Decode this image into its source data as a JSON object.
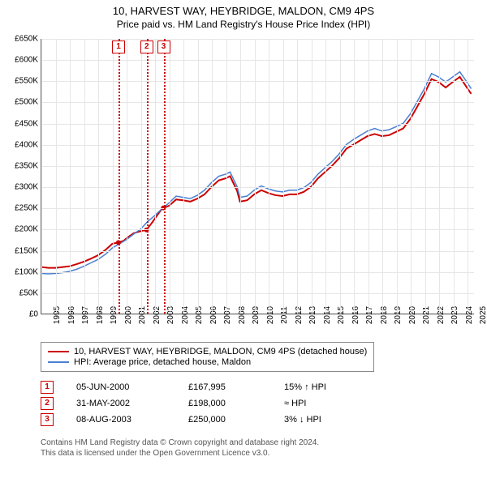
{
  "title_line1": "10, HARVEST WAY, HEYBRIDGE, MALDON, CM9 4PS",
  "title_line2": "Price paid vs. HM Land Registry's House Price Index (HPI)",
  "chart": {
    "type": "line",
    "background_color": "#ffffff",
    "grid_color": "#e6e6e6",
    "axis_color": "#666666",
    "x_min": 1995,
    "x_max": 2025.5,
    "y_min": 0,
    "y_max": 650000,
    "y_step": 50000,
    "y_prefix": "£",
    "y_suffix": "K",
    "x_ticks": [
      1995,
      1996,
      1997,
      1998,
      1999,
      2000,
      2001,
      2002,
      2003,
      2004,
      2005,
      2006,
      2007,
      2008,
      2009,
      2010,
      2011,
      2012,
      2013,
      2014,
      2015,
      2016,
      2017,
      2018,
      2019,
      2020,
      2021,
      2022,
      2023,
      2024,
      2025
    ],
    "series": [
      {
        "name": "10, HARVEST WAY, HEYBRIDGE, MALDON, CM9 4PS (detached house)",
        "color": "#cc0000",
        "width": 2,
        "points": [
          [
            1995,
            110000
          ],
          [
            1995.5,
            108000
          ],
          [
            1996,
            108000
          ],
          [
            1996.5,
            110000
          ],
          [
            1997,
            112000
          ],
          [
            1997.5,
            117000
          ],
          [
            1998,
            123000
          ],
          [
            1998.5,
            130000
          ],
          [
            1999,
            138000
          ],
          [
            1999.5,
            150000
          ],
          [
            2000,
            165000
          ],
          [
            2000.4,
            168000
          ],
          [
            2000.8,
            172000
          ],
          [
            2001,
            178000
          ],
          [
            2001.5,
            190000
          ],
          [
            2002,
            195000
          ],
          [
            2002.4,
            198000
          ],
          [
            2002.8,
            215000
          ],
          [
            2003,
            225000
          ],
          [
            2003.5,
            248000
          ],
          [
            2003.6,
            250000
          ],
          [
            2004,
            255000
          ],
          [
            2004.5,
            270000
          ],
          [
            2005,
            268000
          ],
          [
            2005.5,
            265000
          ],
          [
            2006,
            272000
          ],
          [
            2006.5,
            282000
          ],
          [
            2007,
            300000
          ],
          [
            2007.5,
            315000
          ],
          [
            2008,
            320000
          ],
          [
            2008.3,
            325000
          ],
          [
            2008.8,
            290000
          ],
          [
            2009,
            265000
          ],
          [
            2009.5,
            268000
          ],
          [
            2010,
            282000
          ],
          [
            2010.5,
            292000
          ],
          [
            2011,
            285000
          ],
          [
            2011.5,
            280000
          ],
          [
            2012,
            278000
          ],
          [
            2012.5,
            282000
          ],
          [
            2013,
            282000
          ],
          [
            2013.5,
            288000
          ],
          [
            2014,
            300000
          ],
          [
            2014.5,
            320000
          ],
          [
            2015,
            335000
          ],
          [
            2015.5,
            350000
          ],
          [
            2016,
            368000
          ],
          [
            2016.5,
            390000
          ],
          [
            2017,
            400000
          ],
          [
            2017.5,
            410000
          ],
          [
            2018,
            420000
          ],
          [
            2018.5,
            425000
          ],
          [
            2019,
            420000
          ],
          [
            2019.5,
            422000
          ],
          [
            2020,
            430000
          ],
          [
            2020.5,
            438000
          ],
          [
            2021,
            460000
          ],
          [
            2021.5,
            490000
          ],
          [
            2022,
            520000
          ],
          [
            2022.5,
            555000
          ],
          [
            2023,
            548000
          ],
          [
            2023.5,
            535000
          ],
          [
            2024,
            548000
          ],
          [
            2024.5,
            560000
          ],
          [
            2025,
            535000
          ],
          [
            2025.3,
            520000
          ]
        ]
      },
      {
        "name": "HPI: Average price, detached house, Maldon",
        "color": "#4a7fd1",
        "width": 1.5,
        "points": [
          [
            1995,
            95000
          ],
          [
            1995.5,
            94000
          ],
          [
            1996,
            95000
          ],
          [
            1996.5,
            97000
          ],
          [
            1997,
            100000
          ],
          [
            1997.5,
            105000
          ],
          [
            1998,
            112000
          ],
          [
            1998.5,
            120000
          ],
          [
            1999,
            128000
          ],
          [
            1999.5,
            140000
          ],
          [
            2000,
            155000
          ],
          [
            2000.5,
            165000
          ],
          [
            2001,
            175000
          ],
          [
            2001.5,
            188000
          ],
          [
            2002,
            200000
          ],
          [
            2002.5,
            218000
          ],
          [
            2003,
            232000
          ],
          [
            2003.5,
            248000
          ],
          [
            2004,
            262000
          ],
          [
            2004.5,
            278000
          ],
          [
            2005,
            275000
          ],
          [
            2005.5,
            272000
          ],
          [
            2006,
            280000
          ],
          [
            2006.5,
            292000
          ],
          [
            2007,
            310000
          ],
          [
            2007.5,
            325000
          ],
          [
            2008,
            330000
          ],
          [
            2008.3,
            335000
          ],
          [
            2008.8,
            300000
          ],
          [
            2009,
            275000
          ],
          [
            2009.5,
            278000
          ],
          [
            2010,
            292000
          ],
          [
            2010.5,
            302000
          ],
          [
            2011,
            295000
          ],
          [
            2011.5,
            290000
          ],
          [
            2012,
            288000
          ],
          [
            2012.5,
            292000
          ],
          [
            2013,
            292000
          ],
          [
            2013.5,
            298000
          ],
          [
            2014,
            310000
          ],
          [
            2014.5,
            330000
          ],
          [
            2015,
            345000
          ],
          [
            2015.5,
            360000
          ],
          [
            2016,
            378000
          ],
          [
            2016.5,
            400000
          ],
          [
            2017,
            412000
          ],
          [
            2017.5,
            422000
          ],
          [
            2018,
            432000
          ],
          [
            2018.5,
            438000
          ],
          [
            2019,
            432000
          ],
          [
            2019.5,
            435000
          ],
          [
            2020,
            442000
          ],
          [
            2020.5,
            450000
          ],
          [
            2021,
            472000
          ],
          [
            2021.5,
            502000
          ],
          [
            2022,
            532000
          ],
          [
            2022.5,
            568000
          ],
          [
            2023,
            560000
          ],
          [
            2023.5,
            548000
          ],
          [
            2024,
            560000
          ],
          [
            2024.5,
            572000
          ],
          [
            2025,
            548000
          ],
          [
            2025.3,
            532000
          ]
        ]
      }
    ],
    "sale_markers": [
      {
        "n": "1",
        "x": 2000.43,
        "date": "05-JUN-2000",
        "price": "£167,995",
        "delta": "15% ↑ HPI"
      },
      {
        "n": "2",
        "x": 2002.41,
        "date": "31-MAY-2002",
        "price": "£198,000",
        "delta": "≈ HPI"
      },
      {
        "n": "3",
        "x": 2003.6,
        "date": "08-AUG-2003",
        "price": "£250,000",
        "delta": "3% ↓ HPI"
      }
    ],
    "sale_marker_color": "#cc0000",
    "sale_price_points": [
      [
        2000.43,
        167995
      ],
      [
        2002.41,
        198000
      ],
      [
        2003.6,
        250000
      ]
    ]
  },
  "legend_title_fontsize": 11,
  "footnote_line1": "Contains HM Land Registry data © Crown copyright and database right 2024.",
  "footnote_line2": "This data is licensed under the Open Government Licence v3.0."
}
